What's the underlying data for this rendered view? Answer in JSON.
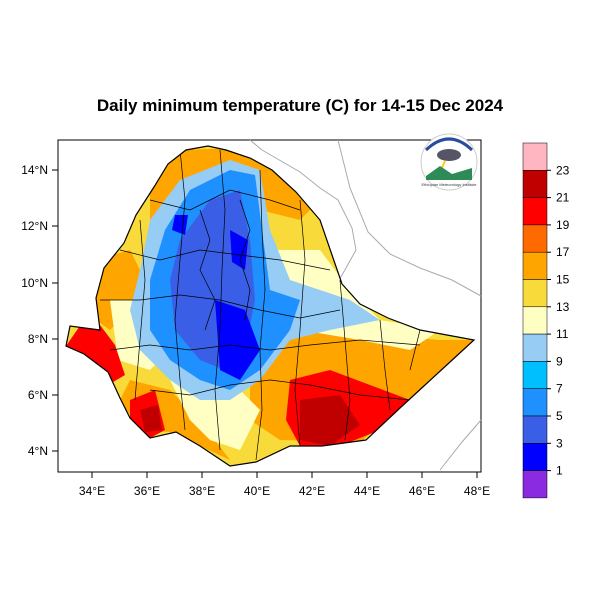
{
  "map": {
    "title": "Daily minimum temperature (C) for 14-15 Dec 2024",
    "lon_ticks": [
      "34°E",
      "36°E",
      "38°E",
      "40°E",
      "42°E",
      "44°E",
      "46°E",
      "48°E"
    ],
    "lat_ticks": [
      "14°N",
      "12°N",
      "10°N",
      "8°N",
      "6°N",
      "4°N"
    ],
    "extent": {
      "lon": [
        33,
        48.2
      ],
      "lat": [
        3.2,
        15
      ]
    },
    "logo": {
      "name": "ethiopian-meteorology-logo-icon",
      "text": "Ethiopian Meteorology Institute"
    }
  },
  "legend": {
    "labels": [
      "1",
      "3",
      "5",
      "7",
      "9",
      "11",
      "13",
      "15",
      "17",
      "19",
      "21",
      "23"
    ],
    "colors": [
      "#8a2be2",
      "#0000ff",
      "#3a5fe6",
      "#1e90ff",
      "#00bfff",
      "#97cdf4",
      "#ffffc4",
      "#f8db3a",
      "#ffa500",
      "#ff6a00",
      "#ff0000",
      "#c00000",
      "#ffb6c1"
    ]
  }
}
